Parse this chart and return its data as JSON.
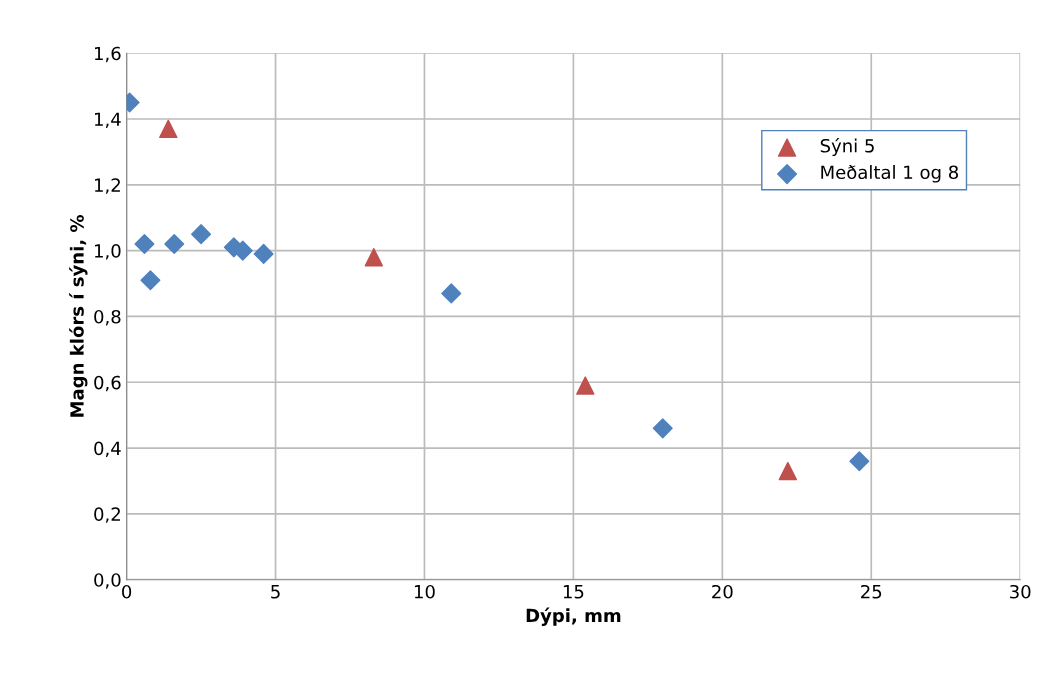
{
  "chart_data": {
    "type": "scatter",
    "xlabel": "Dýpi, mm",
    "ylabel": "Magn klórs í sýni, %",
    "xlim": [
      0,
      30
    ],
    "xticks": [
      0,
      5,
      10,
      15,
      20,
      25,
      30
    ],
    "ylim": [
      0,
      1.6
    ],
    "yticks": [
      {
        "value": 0,
        "label": "0,0"
      },
      {
        "value": 0.2,
        "label": "0,2"
      },
      {
        "value": 0.4,
        "label": "0,4"
      },
      {
        "value": 0.6,
        "label": "0,6"
      },
      {
        "value": 0.8,
        "label": "0,8"
      },
      {
        "value": 1.0,
        "label": "1,0"
      },
      {
        "value": 1.2,
        "label": "1,2"
      },
      {
        "value": 1.4,
        "label": "1,4"
      },
      {
        "value": 1.6,
        "label": "1,6"
      }
    ],
    "grid": true,
    "legend": "top right",
    "series": [
      {
        "name": "Sýni 5",
        "color": "#c0504d",
        "marker": "triangle",
        "x": [
          1.4,
          8.3,
          15.4,
          22.2
        ],
        "values": [
          1.37,
          0.98,
          0.59,
          0.33
        ]
      },
      {
        "name": "Meðaltal 1 og 8",
        "color": "#4f81bd",
        "marker": "diamond",
        "x": [
          0.1,
          0.6,
          0.8,
          1.6,
          2.5,
          3.6,
          3.9,
          4.6,
          10.9,
          18.0,
          24.6
        ],
        "values": [
          1.45,
          1.02,
          0.91,
          1.02,
          1.05,
          1.01,
          1.0,
          0.99,
          0.87,
          0.46,
          0.36
        ]
      }
    ]
  }
}
